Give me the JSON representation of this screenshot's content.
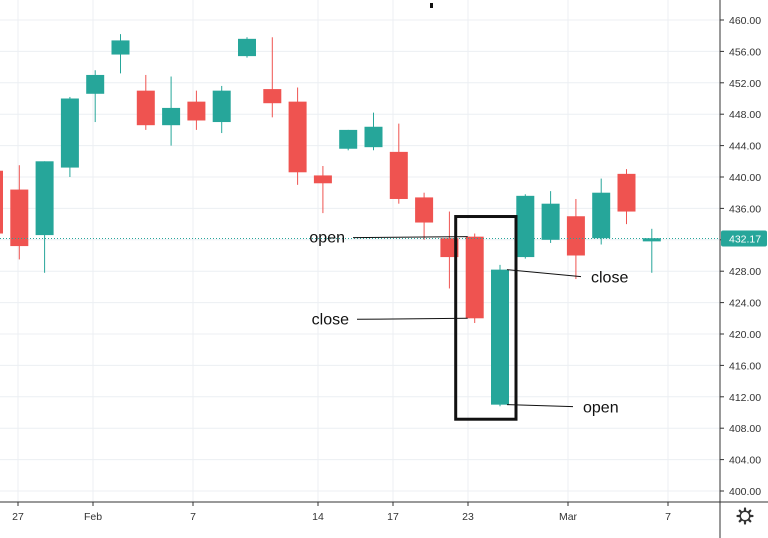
{
  "chart_data": {
    "type": "candlestick",
    "title": "",
    "xlabel": "",
    "ylabel": "",
    "ylim": [
      398,
      462
    ],
    "y_ticks": [
      400,
      404,
      408,
      412,
      416,
      420,
      424,
      428,
      432,
      436,
      440,
      444,
      448,
      452,
      456,
      460
    ],
    "x_ticks": [
      "27",
      "Feb",
      "7",
      "14",
      "17",
      "23",
      "Mar",
      "7"
    ],
    "last_price": "432.17",
    "grid": true,
    "up_color": "#26a69a",
    "down_color": "#ef5350",
    "candles": [
      {
        "open": 440.8,
        "high": 441.2,
        "low": 432.0,
        "close": 432.8
      },
      {
        "open": 438.4,
        "high": 441.5,
        "low": 429.5,
        "close": 431.2
      },
      {
        "open": 432.6,
        "high": 442.0,
        "low": 427.8,
        "close": 442.0
      },
      {
        "open": 441.2,
        "high": 450.2,
        "low": 440.0,
        "close": 450.0
      },
      {
        "open": 450.6,
        "high": 453.6,
        "low": 447.0,
        "close": 453.0
      },
      {
        "open": 455.6,
        "high": 458.2,
        "low": 453.2,
        "close": 457.4
      },
      {
        "open": 451.0,
        "high": 453.0,
        "low": 446.0,
        "close": 446.6
      },
      {
        "open": 446.6,
        "high": 452.8,
        "low": 444.0,
        "close": 448.8
      },
      {
        "open": 449.6,
        "high": 451.0,
        "low": 446.0,
        "close": 447.2
      },
      {
        "open": 447.0,
        "high": 451.6,
        "low": 445.6,
        "close": 451.0
      },
      {
        "open": 455.4,
        "high": 457.8,
        "low": 455.2,
        "close": 457.6
      },
      {
        "open": 451.2,
        "high": 457.8,
        "low": 447.6,
        "close": 449.4
      },
      {
        "open": 449.6,
        "high": 451.4,
        "low": 439.0,
        "close": 440.6
      },
      {
        "open": 440.2,
        "high": 441.4,
        "low": 435.4,
        "close": 439.2
      },
      {
        "open": 443.6,
        "high": 446.0,
        "low": 443.4,
        "close": 446.0
      },
      {
        "open": 443.8,
        "high": 448.2,
        "low": 443.4,
        "close": 446.4
      },
      {
        "open": 443.2,
        "high": 446.8,
        "low": 436.6,
        "close": 437.2
      },
      {
        "open": 437.4,
        "high": 438.0,
        "low": 432.0,
        "close": 434.2
      },
      {
        "open": 432.2,
        "high": 435.6,
        "low": 425.8,
        "close": 429.8
      },
      {
        "open": 432.4,
        "high": 432.8,
        "low": 421.4,
        "close": 422.0
      },
      {
        "open": 411.0,
        "high": 428.8,
        "low": 410.8,
        "close": 428.2
      },
      {
        "open": 429.8,
        "high": 437.8,
        "low": 429.6,
        "close": 437.6
      },
      {
        "open": 432.0,
        "high": 438.2,
        "low": 431.6,
        "close": 436.6
      },
      {
        "open": 435.0,
        "high": 437.2,
        "low": 427.0,
        "close": 430.0
      },
      {
        "open": 432.2,
        "high": 439.8,
        "low": 431.4,
        "close": 438.0
      },
      {
        "open": 440.4,
        "high": 441.0,
        "low": 434.0,
        "close": 435.6
      },
      {
        "open": 431.8,
        "high": 433.4,
        "low": 427.8,
        "close": 432.2
      }
    ],
    "annotations": [
      {
        "text": "open",
        "candle": 19,
        "price": 432.4
      },
      {
        "text": "close",
        "candle": 19,
        "price": 422.0
      },
      {
        "text": "close",
        "candle": 20,
        "price": 428.2
      },
      {
        "text": "open",
        "candle": 20,
        "price": 411.0
      }
    ],
    "highlight_box": {
      "from_candle": 19,
      "to_candle": 20
    }
  }
}
